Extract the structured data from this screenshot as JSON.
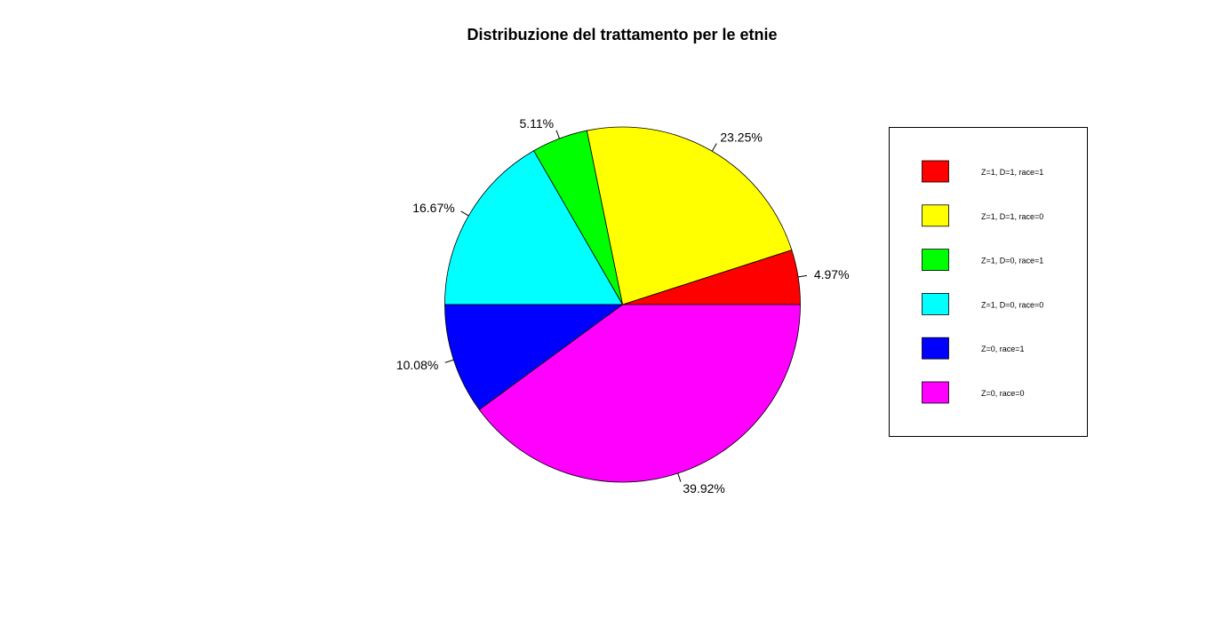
{
  "chart_data": {
    "type": "pie",
    "title": "Distribuzione del trattamento per le etnie",
    "legend_position": "right",
    "slices": [
      {
        "label": "Z=1, D=1, race=1",
        "value": 4.97,
        "value_label": "4.97%",
        "color": "#FF0000"
      },
      {
        "label": "Z=1, D=1, race=0",
        "value": 23.25,
        "value_label": "23.25%",
        "color": "#FFFF00"
      },
      {
        "label": "Z=1, D=0, race=1",
        "value": 5.11,
        "value_label": "5.11%",
        "color": "#00FF00"
      },
      {
        "label": "Z=1, D=0, race=0",
        "value": 16.67,
        "value_label": "16.67%",
        "color": "#00FFFF"
      },
      {
        "label": "Z=0, race=1",
        "value": 10.08,
        "value_label": "10.08%",
        "color": "#0000FF"
      },
      {
        "label": "Z=0, race=0",
        "value": 39.92,
        "value_label": "39.92%",
        "color": "#FF00FF"
      }
    ]
  }
}
